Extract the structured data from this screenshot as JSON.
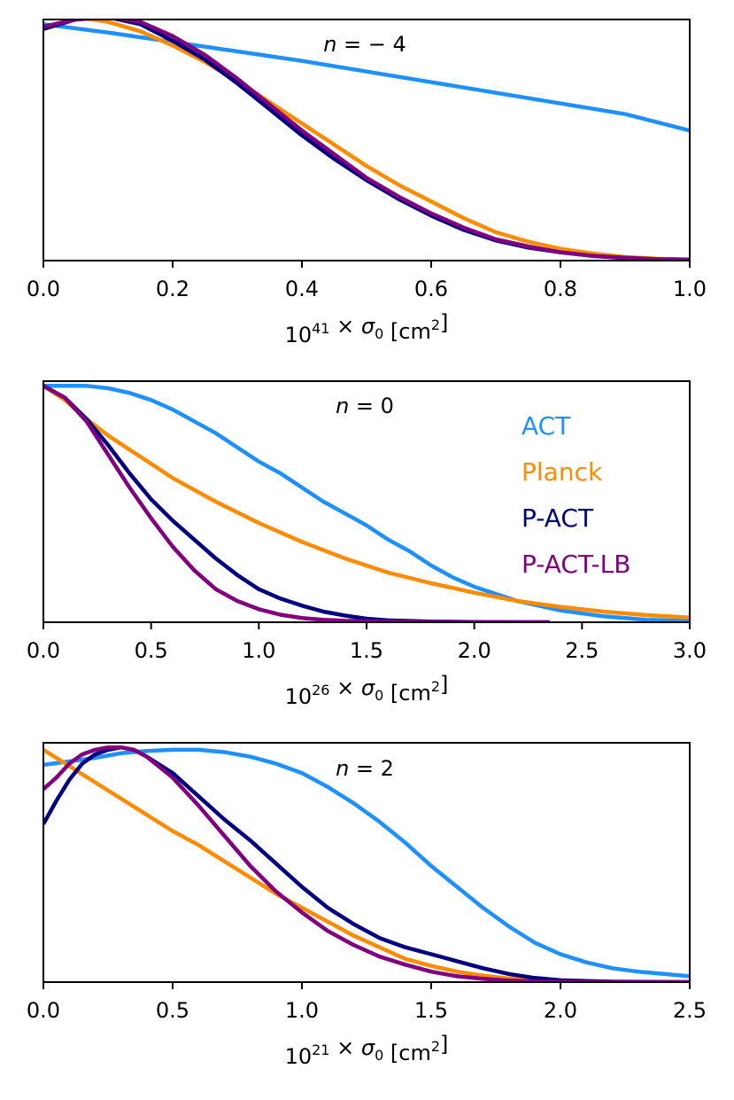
{
  "chart_data": [
    {
      "type": "line",
      "title_prefix": "n",
      "title_value": " = − 4",
      "xlabel": {
        "base": "10",
        "exp": "41",
        "rest": " × σ",
        "sub": "0",
        "unit": " [cm",
        "unit_exp": "2",
        "close": "]"
      },
      "xlim": [
        0,
        1
      ],
      "ylim": [
        0,
        1.02
      ],
      "xticks": [
        "0.0",
        "0.2",
        "0.4",
        "0.6",
        "0.8",
        "1.0"
      ],
      "xtick_values": [
        0,
        0.2,
        0.4,
        0.6,
        0.8,
        1.0
      ],
      "series": [
        {
          "color": "#1e90ff",
          "x": [
            0,
            0.1,
            0.2,
            0.3,
            0.4,
            0.5,
            0.6,
            0.7,
            0.8,
            0.9,
            1.0
          ],
          "y": [
            1.0,
            0.965,
            0.925,
            0.885,
            0.845,
            0.8,
            0.755,
            0.71,
            0.665,
            0.62,
            0.55
          ]
        },
        {
          "color": "#ff8c00",
          "x": [
            0,
            0.05,
            0.1,
            0.15,
            0.2,
            0.25,
            0.3,
            0.35,
            0.4,
            0.45,
            0.5,
            0.55,
            0.6,
            0.65,
            0.7,
            0.75,
            0.8,
            0.85,
            0.9,
            0.95,
            1.0
          ],
          "y": [
            1.03,
            1.03,
            1.01,
            0.97,
            0.91,
            0.84,
            0.76,
            0.67,
            0.58,
            0.49,
            0.4,
            0.32,
            0.25,
            0.18,
            0.12,
            0.08,
            0.05,
            0.03,
            0.015,
            0.008,
            0.005
          ]
        },
        {
          "color": "#000080",
          "x": [
            0,
            0.05,
            0.1,
            0.15,
            0.2,
            0.25,
            0.3,
            0.35,
            0.4,
            0.45,
            0.5,
            0.55,
            0.6,
            0.65,
            0.7,
            0.75,
            0.8,
            0.85,
            0.9,
            0.95,
            1.0
          ],
          "y": [
            0.98,
            1.02,
            1.03,
            1.0,
            0.93,
            0.85,
            0.75,
            0.64,
            0.53,
            0.43,
            0.34,
            0.26,
            0.19,
            0.13,
            0.085,
            0.055,
            0.035,
            0.02,
            0.01,
            0.005,
            0.003
          ]
        },
        {
          "color": "#800080",
          "x": [
            0,
            0.05,
            0.1,
            0.15,
            0.2,
            0.25,
            0.3,
            0.35,
            0.4,
            0.45,
            0.5,
            0.55,
            0.6,
            0.65,
            0.7,
            0.75,
            0.8,
            0.85,
            0.9,
            0.95,
            1.0
          ],
          "y": [
            0.99,
            1.02,
            1.03,
            1.01,
            0.95,
            0.87,
            0.77,
            0.66,
            0.55,
            0.45,
            0.35,
            0.27,
            0.2,
            0.14,
            0.09,
            0.06,
            0.035,
            0.02,
            0.012,
            0.006,
            0.004
          ]
        }
      ]
    },
    {
      "type": "line",
      "title_prefix": "n",
      "title_value": " = 0",
      "xlabel": {
        "base": "10",
        "exp": "26",
        "rest": " × σ",
        "sub": "0",
        "unit": " [cm",
        "unit_exp": "2",
        "close": "]"
      },
      "xlim": [
        0,
        3
      ],
      "ylim": [
        0,
        1.02
      ],
      "xticks": [
        "0.0",
        "0.5",
        "1.0",
        "1.5",
        "2.0",
        "2.5",
        "3.0"
      ],
      "xtick_values": [
        0,
        0.5,
        1.0,
        1.5,
        2.0,
        2.5,
        3.0
      ],
      "legend": [
        {
          "label": "ACT",
          "color": "#1e90ff"
        },
        {
          "label": "Planck",
          "color": "#ff8c00"
        },
        {
          "label": "P-ACT",
          "color": "#000080"
        },
        {
          "label": "P-ACT-LB",
          "color": "#800080"
        }
      ],
      "series": [
        {
          "color": "#1e90ff",
          "x": [
            0,
            0.1,
            0.2,
            0.3,
            0.4,
            0.5,
            0.6,
            0.7,
            0.8,
            0.9,
            1.0,
            1.1,
            1.2,
            1.3,
            1.4,
            1.5,
            1.6,
            1.7,
            1.8,
            1.9,
            2.0,
            2.2,
            2.4,
            2.6,
            2.8,
            3.0
          ],
          "y": [
            1.0,
            1.0,
            1.0,
            0.99,
            0.97,
            0.94,
            0.9,
            0.85,
            0.8,
            0.74,
            0.68,
            0.63,
            0.57,
            0.51,
            0.46,
            0.41,
            0.35,
            0.3,
            0.24,
            0.19,
            0.15,
            0.09,
            0.05,
            0.025,
            0.01,
            0.005
          ]
        },
        {
          "color": "#ff8c00",
          "x": [
            0,
            0.1,
            0.2,
            0.3,
            0.4,
            0.5,
            0.6,
            0.8,
            1.0,
            1.2,
            1.4,
            1.6,
            1.8,
            2.0,
            2.2,
            2.4,
            2.6,
            2.8,
            3.0
          ],
          "y": [
            1.0,
            0.94,
            0.86,
            0.79,
            0.73,
            0.67,
            0.61,
            0.51,
            0.42,
            0.34,
            0.27,
            0.21,
            0.165,
            0.125,
            0.09,
            0.065,
            0.045,
            0.03,
            0.02
          ]
        },
        {
          "color": "#000080",
          "x": [
            0,
            0.1,
            0.2,
            0.3,
            0.4,
            0.5,
            0.6,
            0.7,
            0.8,
            0.9,
            1.0,
            1.1,
            1.2,
            1.3,
            1.4,
            1.5,
            1.6,
            1.8,
            2.0,
            2.35
          ],
          "y": [
            1.0,
            0.95,
            0.86,
            0.75,
            0.63,
            0.52,
            0.43,
            0.35,
            0.27,
            0.2,
            0.14,
            0.1,
            0.07,
            0.045,
            0.028,
            0.015,
            0.008,
            0.003,
            0.001,
            0.0
          ]
        },
        {
          "color": "#800080",
          "x": [
            0,
            0.1,
            0.2,
            0.3,
            0.4,
            0.5,
            0.6,
            0.7,
            0.8,
            0.9,
            1.0,
            1.1,
            1.2,
            1.3,
            1.4,
            1.5,
            1.6,
            1.8,
            2.0,
            2.35
          ],
          "y": [
            1.0,
            0.95,
            0.85,
            0.71,
            0.57,
            0.44,
            0.32,
            0.22,
            0.14,
            0.09,
            0.055,
            0.032,
            0.018,
            0.01,
            0.006,
            0.004,
            0.002,
            0.001,
            0.0,
            0.0
          ]
        }
      ]
    },
    {
      "type": "line",
      "title_prefix": "n",
      "title_value": " = 2",
      "xlabel": {
        "base": "10",
        "exp": "21",
        "rest": " × σ",
        "sub": "0",
        "unit": " [cm",
        "unit_exp": "2",
        "close": "]"
      },
      "xlim": [
        0,
        2.5
      ],
      "ylim": [
        0,
        1.03
      ],
      "xticks": [
        "0.0",
        "0.5",
        "1.0",
        "1.5",
        "2.0",
        "2.5"
      ],
      "xtick_values": [
        0,
        0.5,
        1.0,
        1.5,
        2.0,
        2.5
      ],
      "series": [
        {
          "color": "#1e90ff",
          "x": [
            0,
            0.1,
            0.2,
            0.3,
            0.4,
            0.5,
            0.6,
            0.7,
            0.8,
            0.9,
            1.0,
            1.1,
            1.2,
            1.3,
            1.4,
            1.5,
            1.6,
            1.7,
            1.8,
            1.9,
            2.0,
            2.1,
            2.2,
            2.3,
            2.4,
            2.5
          ],
          "y": [
            0.935,
            0.95,
            0.965,
            0.985,
            0.995,
            1.0,
            1.0,
            0.99,
            0.97,
            0.94,
            0.9,
            0.84,
            0.77,
            0.69,
            0.6,
            0.5,
            0.41,
            0.32,
            0.24,
            0.17,
            0.12,
            0.085,
            0.06,
            0.045,
            0.035,
            0.025
          ]
        },
        {
          "color": "#ff8c00",
          "x": [
            0,
            0.1,
            0.2,
            0.3,
            0.4,
            0.5,
            0.6,
            0.7,
            0.8,
            0.9,
            1.0,
            1.1,
            1.2,
            1.3,
            1.4,
            1.5,
            1.6,
            1.7,
            1.8,
            1.9,
            2.0,
            2.2,
            2.5
          ],
          "y": [
            1.0,
            0.93,
            0.86,
            0.79,
            0.72,
            0.65,
            0.59,
            0.52,
            0.45,
            0.38,
            0.32,
            0.26,
            0.2,
            0.15,
            0.1,
            0.07,
            0.045,
            0.028,
            0.016,
            0.008,
            0.004,
            0.001,
            0.0
          ]
        },
        {
          "color": "#000080",
          "x": [
            0,
            0.05,
            0.1,
            0.15,
            0.2,
            0.25,
            0.3,
            0.35,
            0.4,
            0.5,
            0.6,
            0.7,
            0.8,
            0.9,
            1.0,
            1.1,
            1.2,
            1.3,
            1.4,
            1.5,
            1.6,
            1.7,
            1.8,
            1.9,
            2.0,
            2.2,
            2.5
          ],
          "y": [
            0.68,
            0.78,
            0.87,
            0.94,
            0.98,
            1.0,
            1.01,
            1.0,
            0.97,
            0.9,
            0.8,
            0.7,
            0.61,
            0.51,
            0.41,
            0.32,
            0.25,
            0.19,
            0.15,
            0.12,
            0.09,
            0.06,
            0.035,
            0.018,
            0.008,
            0.002,
            0.0
          ]
        },
        {
          "color": "#800080",
          "x": [
            0,
            0.05,
            0.1,
            0.15,
            0.2,
            0.25,
            0.3,
            0.35,
            0.4,
            0.5,
            0.6,
            0.7,
            0.8,
            0.9,
            1.0,
            1.1,
            1.2,
            1.3,
            1.4,
            1.5,
            1.6,
            1.7,
            1.8,
            1.9,
            2.0,
            2.2,
            2.5
          ],
          "y": [
            0.83,
            0.88,
            0.94,
            0.98,
            1.0,
            1.01,
            1.01,
            1.0,
            0.97,
            0.88,
            0.76,
            0.63,
            0.5,
            0.39,
            0.3,
            0.22,
            0.16,
            0.11,
            0.075,
            0.045,
            0.025,
            0.014,
            0.007,
            0.003,
            0.001,
            0.0,
            0.0
          ]
        }
      ]
    }
  ]
}
